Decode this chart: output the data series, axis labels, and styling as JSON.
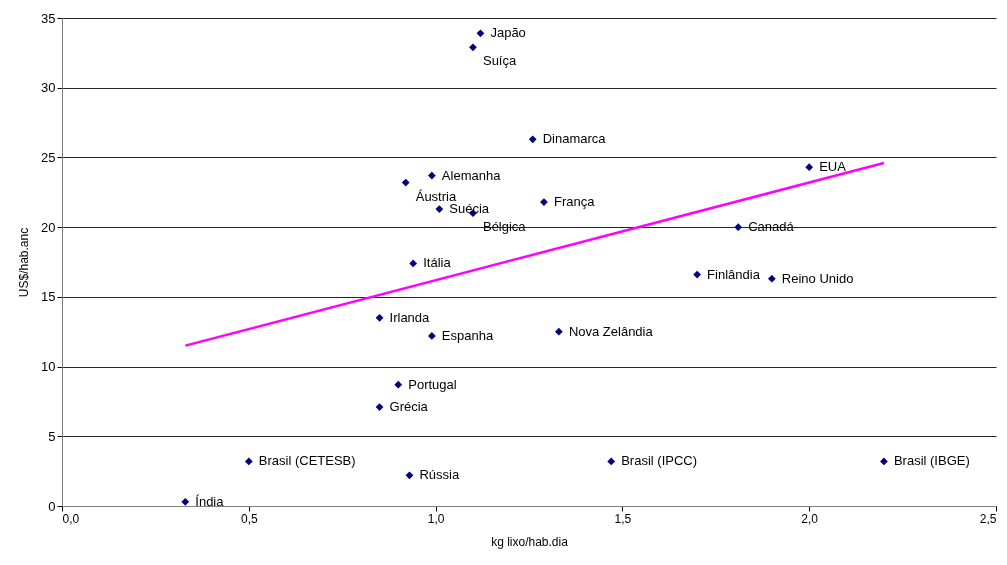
{
  "chart_data": {
    "type": "scatter",
    "xlabel": "kg lixo/hab.dia",
    "ylabel": "US$/hab.anc",
    "xlim": [
      0,
      2.5
    ],
    "xticks": [
      {
        "value": 0,
        "label": "0,0"
      },
      {
        "value": 0.5,
        "label": "0,5"
      },
      {
        "value": 1,
        "label": "1,0"
      },
      {
        "value": 1.5,
        "label": "1,5"
      },
      {
        "value": 2,
        "label": "2,0"
      },
      {
        "value": 2.5,
        "label": "2,5"
      }
    ],
    "ylim": [
      0,
      35
    ],
    "yticks": [
      0,
      5,
      10,
      15,
      20,
      25,
      30,
      35
    ],
    "grid": "y",
    "series": [
      {
        "color": "#000080",
        "marker": "diamond",
        "x": [
          1.12,
          1.1,
          1.26,
          0.99,
          0.92,
          1.01,
          1.1,
          1.29,
          0.94,
          2.0,
          1.81,
          1.7,
          1.9,
          0.85,
          0.99,
          1.33,
          0.9,
          0.85,
          0.5,
          0.93,
          0.33,
          1.47,
          2.2
        ],
        "values": [
          33.9,
          32.9,
          26.3,
          23.7,
          23.2,
          21.3,
          21.0,
          21.8,
          17.4,
          24.3,
          20.0,
          16.6,
          16.3,
          13.5,
          12.2,
          12.5,
          8.7,
          7.1,
          3.2,
          2.2,
          0.3,
          3.2,
          3.2
        ]
      },
      {
        "type": "line",
        "color": "#ff00ff",
        "marker": "none",
        "line_style": "solid",
        "x": [
          0.33,
          2.2
        ],
        "values": [
          11.5,
          24.6
        ]
      }
    ],
    "annotations": [
      {
        "text": "Japão",
        "x": 1.12,
        "y": 33.9
      },
      {
        "text": "Suíça",
        "x": 1.1,
        "y": 32.9
      },
      {
        "text": "Dinamarca",
        "x": 1.26,
        "y": 26.3
      },
      {
        "text": "Alemanha",
        "x": 0.99,
        "y": 23.7
      },
      {
        "text": "Áustria",
        "x": 0.92,
        "y": 23.2
      },
      {
        "text": "Suécia",
        "x": 1.01,
        "y": 21.3
      },
      {
        "text": "Bélgica",
        "x": 1.1,
        "y": 21.0
      },
      {
        "text": "França",
        "x": 1.29,
        "y": 21.8
      },
      {
        "text": "Itália",
        "x": 0.94,
        "y": 17.4
      },
      {
        "text": "EUA",
        "x": 2.0,
        "y": 24.3
      },
      {
        "text": "Canadá",
        "x": 1.81,
        "y": 20.0
      },
      {
        "text": "Finlândia",
        "x": 1.7,
        "y": 16.6
      },
      {
        "text": "Reino Unido",
        "x": 1.9,
        "y": 16.3
      },
      {
        "text": "Irlanda",
        "x": 0.85,
        "y": 13.5
      },
      {
        "text": "Espanha",
        "x": 0.99,
        "y": 12.2
      },
      {
        "text": "Nova Zelândia",
        "x": 1.33,
        "y": 12.5
      },
      {
        "text": "Portugal",
        "x": 0.9,
        "y": 8.7
      },
      {
        "text": "Grécia",
        "x": 0.85,
        "y": 7.1
      },
      {
        "text": "Brasil (CETESB)",
        "x": 0.5,
        "y": 3.2
      },
      {
        "text": "Rússia",
        "x": 0.93,
        "y": 2.2
      },
      {
        "text": "Índia",
        "x": 0.33,
        "y": 0.3
      },
      {
        "text": "Brasil (IPCC)",
        "x": 1.47,
        "y": 3.2
      },
      {
        "text": "Brasil (IBGE)",
        "x": 2.2,
        "y": 3.2
      }
    ]
  }
}
